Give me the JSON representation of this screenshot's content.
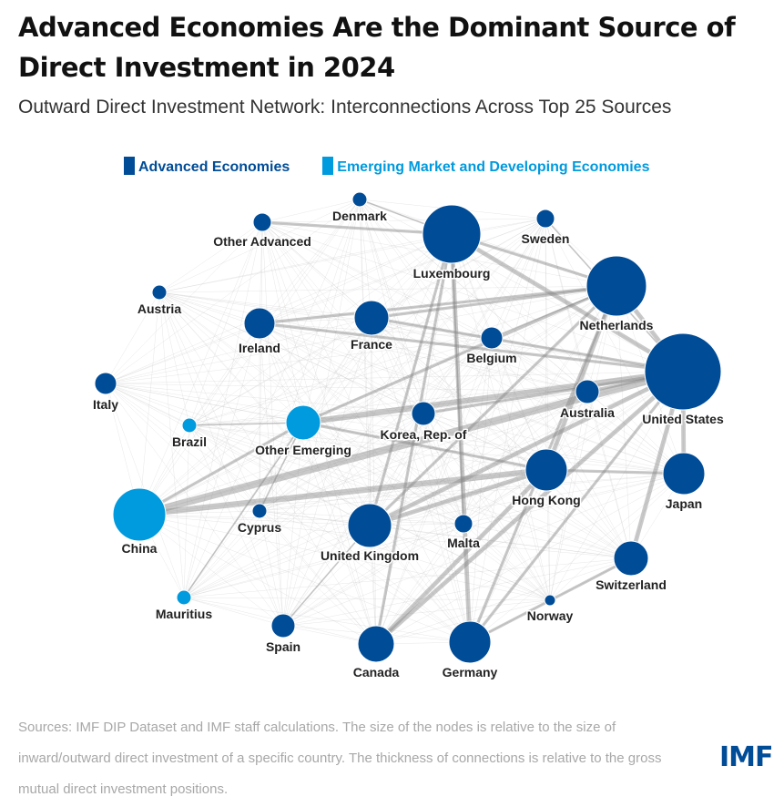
{
  "title": "Advanced Economies Are the Dominant Source of Direct Investment in 2024",
  "subtitle": "Outward Direct Investment Network: Interconnections Across Top 25 Sources",
  "legend": [
    {
      "label": "Advanced Economies",
      "color": "#004c97"
    },
    {
      "label": "Emerging Market and Developing Economies",
      "color": "#009ade"
    }
  ],
  "nodes": [
    {
      "id": "Denmark",
      "group": 0
    },
    {
      "id": "Other Advanced",
      "group": 0
    },
    {
      "id": "Luxembourg",
      "group": 0
    },
    {
      "id": "Sweden",
      "group": 0
    },
    {
      "id": "Austria",
      "group": 0
    },
    {
      "id": "Netherlands",
      "group": 0
    },
    {
      "id": "Ireland",
      "group": 0
    },
    {
      "id": "France",
      "group": 0
    },
    {
      "id": "Belgium",
      "group": 0
    },
    {
      "id": "Italy",
      "group": 0
    },
    {
      "id": "United States",
      "group": 0
    },
    {
      "id": "Australia",
      "group": 0
    },
    {
      "id": "Brazil",
      "group": 1
    },
    {
      "id": "Other Emerging",
      "group": 1
    },
    {
      "id": "Korea, Rep. of",
      "group": 0
    },
    {
      "id": "Hong Kong",
      "group": 0
    },
    {
      "id": "Japan",
      "group": 0
    },
    {
      "id": "China",
      "group": 1
    },
    {
      "id": "Cyprus",
      "group": 0
    },
    {
      "id": "United Kingdom",
      "group": 0
    },
    {
      "id": "Malta",
      "group": 0
    },
    {
      "id": "Switzerland",
      "group": 0
    },
    {
      "id": "Mauritius",
      "group": 1
    },
    {
      "id": "Norway",
      "group": 0
    },
    {
      "id": "Spain",
      "group": 0
    },
    {
      "id": "Canada",
      "group": 0
    },
    {
      "id": "Germany",
      "group": 0
    }
  ],
  "edges": [
    [
      "China",
      "United States",
      5
    ],
    [
      "China",
      "Hong Kong",
      4
    ],
    [
      "Other Emerging",
      "United States",
      4
    ],
    [
      "Hong Kong",
      "Netherlands",
      3
    ],
    [
      "Hong Kong",
      "United Kingdom",
      3
    ],
    [
      "Luxembourg",
      "United States",
      3
    ],
    [
      "Netherlands",
      "United States",
      3
    ],
    [
      "United Kingdom",
      "United States",
      3
    ],
    [
      "Canada",
      "United States",
      3
    ],
    [
      "Germany",
      "Luxembourg",
      3
    ],
    [
      "Japan",
      "United States",
      3
    ],
    [
      "Switzerland",
      "United States",
      3
    ],
    [
      "Canada",
      "Hong Kong",
      3
    ],
    [
      "Luxembourg",
      "Netherlands",
      2
    ],
    [
      "Ireland",
      "Netherlands",
      2
    ],
    [
      "France",
      "Netherlands",
      2
    ],
    [
      "Other Advanced",
      "Luxembourg",
      2
    ],
    [
      "Germany",
      "Netherlands",
      2
    ],
    [
      "United Kingdom",
      "Netherlands",
      2
    ],
    [
      "Other Emerging",
      "Netherlands",
      2
    ],
    [
      "China",
      "Other Emerging",
      2
    ],
    [
      "Japan",
      "Hong Kong",
      2
    ],
    [
      "Other Emerging",
      "Hong Kong",
      2
    ],
    [
      "Korea, Rep. of",
      "United States",
      2
    ],
    [
      "Australia",
      "United States",
      2
    ],
    [
      "Ireland",
      "United States",
      2
    ],
    [
      "France",
      "United States",
      2
    ],
    [
      "Germany",
      "United States",
      2
    ],
    [
      "Switzerland",
      "Germany",
      2
    ],
    [
      "United Kingdom",
      "Luxembourg",
      2
    ],
    [
      "Canada",
      "Luxembourg",
      2
    ],
    [
      "Sweden",
      "United States",
      1
    ],
    [
      "Denmark",
      "Luxembourg",
      1
    ],
    [
      "Spain",
      "United Kingdom",
      1
    ],
    [
      "Mauritius",
      "Other Emerging",
      1
    ],
    [
      "Brazil",
      "Other Emerging",
      1
    ],
    [
      "Cyprus",
      "Other Emerging",
      1
    ],
    [
      "Malta",
      "Luxembourg",
      1
    ],
    [
      "Belgium",
      "Netherlands",
      1
    ]
  ],
  "note": "Sources: IMF DIP Dataset and IMF staff calculations. The size of the nodes is relative to the size of inward/outward direct investment of a specific country. The thickness of connections is relative to the gross mutual direct investment positions.",
  "logo": "IMF"
}
